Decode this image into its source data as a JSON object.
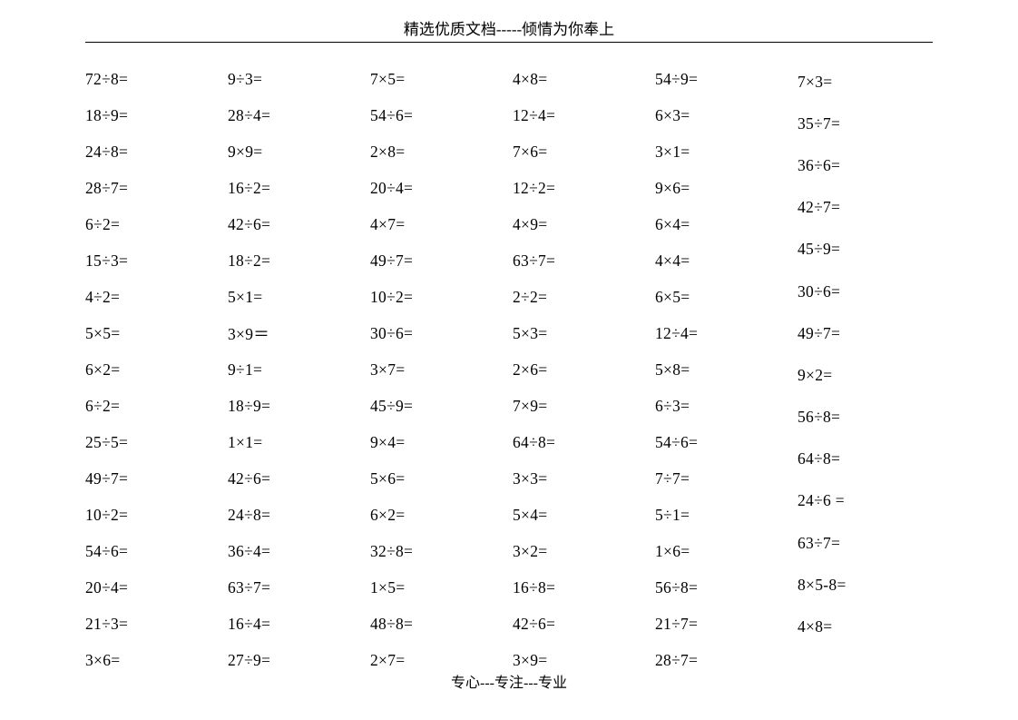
{
  "header": "精选优质文档-----倾情为你奉上",
  "footer": "专心---专注---专业",
  "columns": [
    [
      "72÷8=",
      "18÷9=",
      "24÷8=",
      "28÷7=",
      "6÷2=",
      "15÷3=",
      "4÷2=",
      "5×5=",
      "6×2=",
      "6÷2=",
      "25÷5=",
      "49÷7=",
      "10÷2=",
      "54÷6=",
      "20÷4=",
      "21÷3=",
      "3×6="
    ],
    [
      "9÷3=",
      "28÷4=",
      "9×9=",
      "16÷2=",
      "42÷6=",
      "18÷2=",
      "5×1=",
      "3×9＝",
      "9÷1=",
      "18÷9=",
      "1×1=",
      "42÷6=",
      "24÷8=",
      "36÷4=",
      "63÷7=",
      "16÷4=",
      "27÷9="
    ],
    [
      "7×5=",
      "54÷6=",
      "2×8=",
      "20÷4=",
      "4×7=",
      "49÷7=",
      "10÷2=",
      "30÷6=",
      "3×7=",
      "45÷9=",
      "9×4=",
      "5×6=",
      "6×2=",
      "32÷8=",
      "1×5=",
      "48÷8=",
      "2×7="
    ],
    [
      "4×8=",
      "12÷4=",
      "7×6=",
      "12÷2=",
      "4×9=",
      "63÷7=",
      "2÷2=",
      "5×3=",
      "2×6=",
      "7×9=",
      "64÷8=",
      "3×3=",
      "5×4=",
      "3×2=",
      "16÷8=",
      "42÷6=",
      "3×9="
    ],
    [
      "54÷9=",
      "6×3=",
      "3×1=",
      "9×6=",
      "6×4=",
      "4×4=",
      "6×5=",
      "12÷4=",
      "5×8=",
      "6÷3=",
      "54÷6=",
      "7÷7=",
      "5÷1=",
      "1×6=",
      "56÷8=",
      "21÷7=",
      "28÷7="
    ],
    [
      "7×3=",
      "35÷7=",
      "36÷6=",
      "42÷7=",
      "45÷9=",
      "30÷6=",
      "49÷7=",
      "9×2=",
      "56÷8=",
      "64÷8=",
      "24÷6 =",
      "63÷7=",
      "8×5-8=",
      "4×8="
    ]
  ]
}
